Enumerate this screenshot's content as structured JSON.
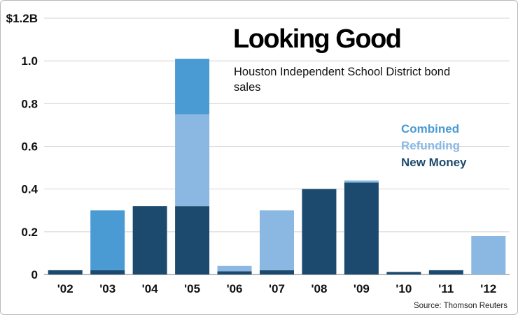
{
  "chart_data": {
    "type": "bar",
    "stacked": true,
    "title": "Looking Good",
    "subtitle": "Houston Independent School District bond sales",
    "categories": [
      "'02",
      "'03",
      "'04",
      "'05",
      "'06",
      "'07",
      "'08",
      "'09",
      "'10",
      "'11",
      "'12"
    ],
    "series": [
      {
        "name": "New Money",
        "color": "#1c4a6e",
        "values": [
          0.02,
          0.02,
          0.32,
          0.32,
          0.015,
          0.02,
          0.4,
          0.43,
          0.012,
          0.02,
          0
        ]
      },
      {
        "name": "Refunding",
        "color": "#8ab8e2",
        "values": [
          0,
          0,
          0,
          0.43,
          0.025,
          0.28,
          0,
          0.01,
          0,
          0,
          0.18
        ]
      },
      {
        "name": "Combined",
        "color": "#4a9ad4",
        "values": [
          0,
          0.28,
          0,
          0.26,
          0,
          0,
          0,
          0,
          0,
          0,
          0
        ]
      }
    ],
    "yticks": [
      "0",
      "0.2",
      "0.4",
      "0.6",
      "0.8",
      "1.0",
      "$1.2B"
    ],
    "ylim": [
      0,
      1.2
    ],
    "grid": true,
    "legend_position": "right",
    "source": "Source: Thomson Reuters"
  }
}
